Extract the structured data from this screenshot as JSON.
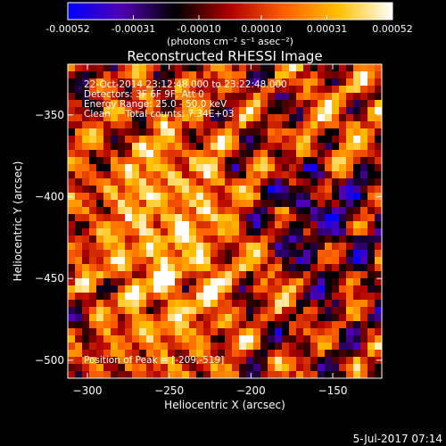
{
  "chart_data": {
    "type": "heatmap",
    "title": "Reconstructed RHESSI Image",
    "xlabel": "Heliocentric X (arcsec)",
    "ylabel": "Heliocentric Y (arcsec)",
    "xlim": [
      -312,
      -120
    ],
    "ylim": [
      -511,
      -319
    ],
    "x_ticks": [
      -300,
      -250,
      -200,
      -150
    ],
    "y_ticks": [
      -500,
      -450,
      -400,
      -350
    ],
    "colorbar": {
      "unit_label": "(photons cm⁻² s⁻¹ asec⁻²)",
      "min": -0.00052,
      "max": 0.00052,
      "tick_values": [
        -0.00052,
        -0.00031,
        -0.0001,
        0.0001,
        0.00031,
        0.00052
      ],
      "tick_labels": [
        "-0.00052",
        "-0.00031",
        "-0.00010",
        "0.00010",
        "0.00031",
        "0.00052"
      ],
      "colors": [
        "#0000ff",
        "#5000b0",
        "#000000",
        "#b00000",
        "#ff6000",
        "#ffc000",
        "#ffffff"
      ]
    },
    "annotations": [
      "22-Oct-2014 23:12:48.000 to 23:22:48.000",
      "Detectors: 3F 6F 9F, Att 0",
      "Energy Range: 25.0 - 50.0 keV",
      "Clean     Total counts: 7.34E+03"
    ],
    "peak_label": "Position of Peak = [-209,-519]",
    "peak": [
      -209,
      -519
    ],
    "grid": false
  },
  "footer": {
    "timestamp": "5-Jul-2017 07:14"
  }
}
